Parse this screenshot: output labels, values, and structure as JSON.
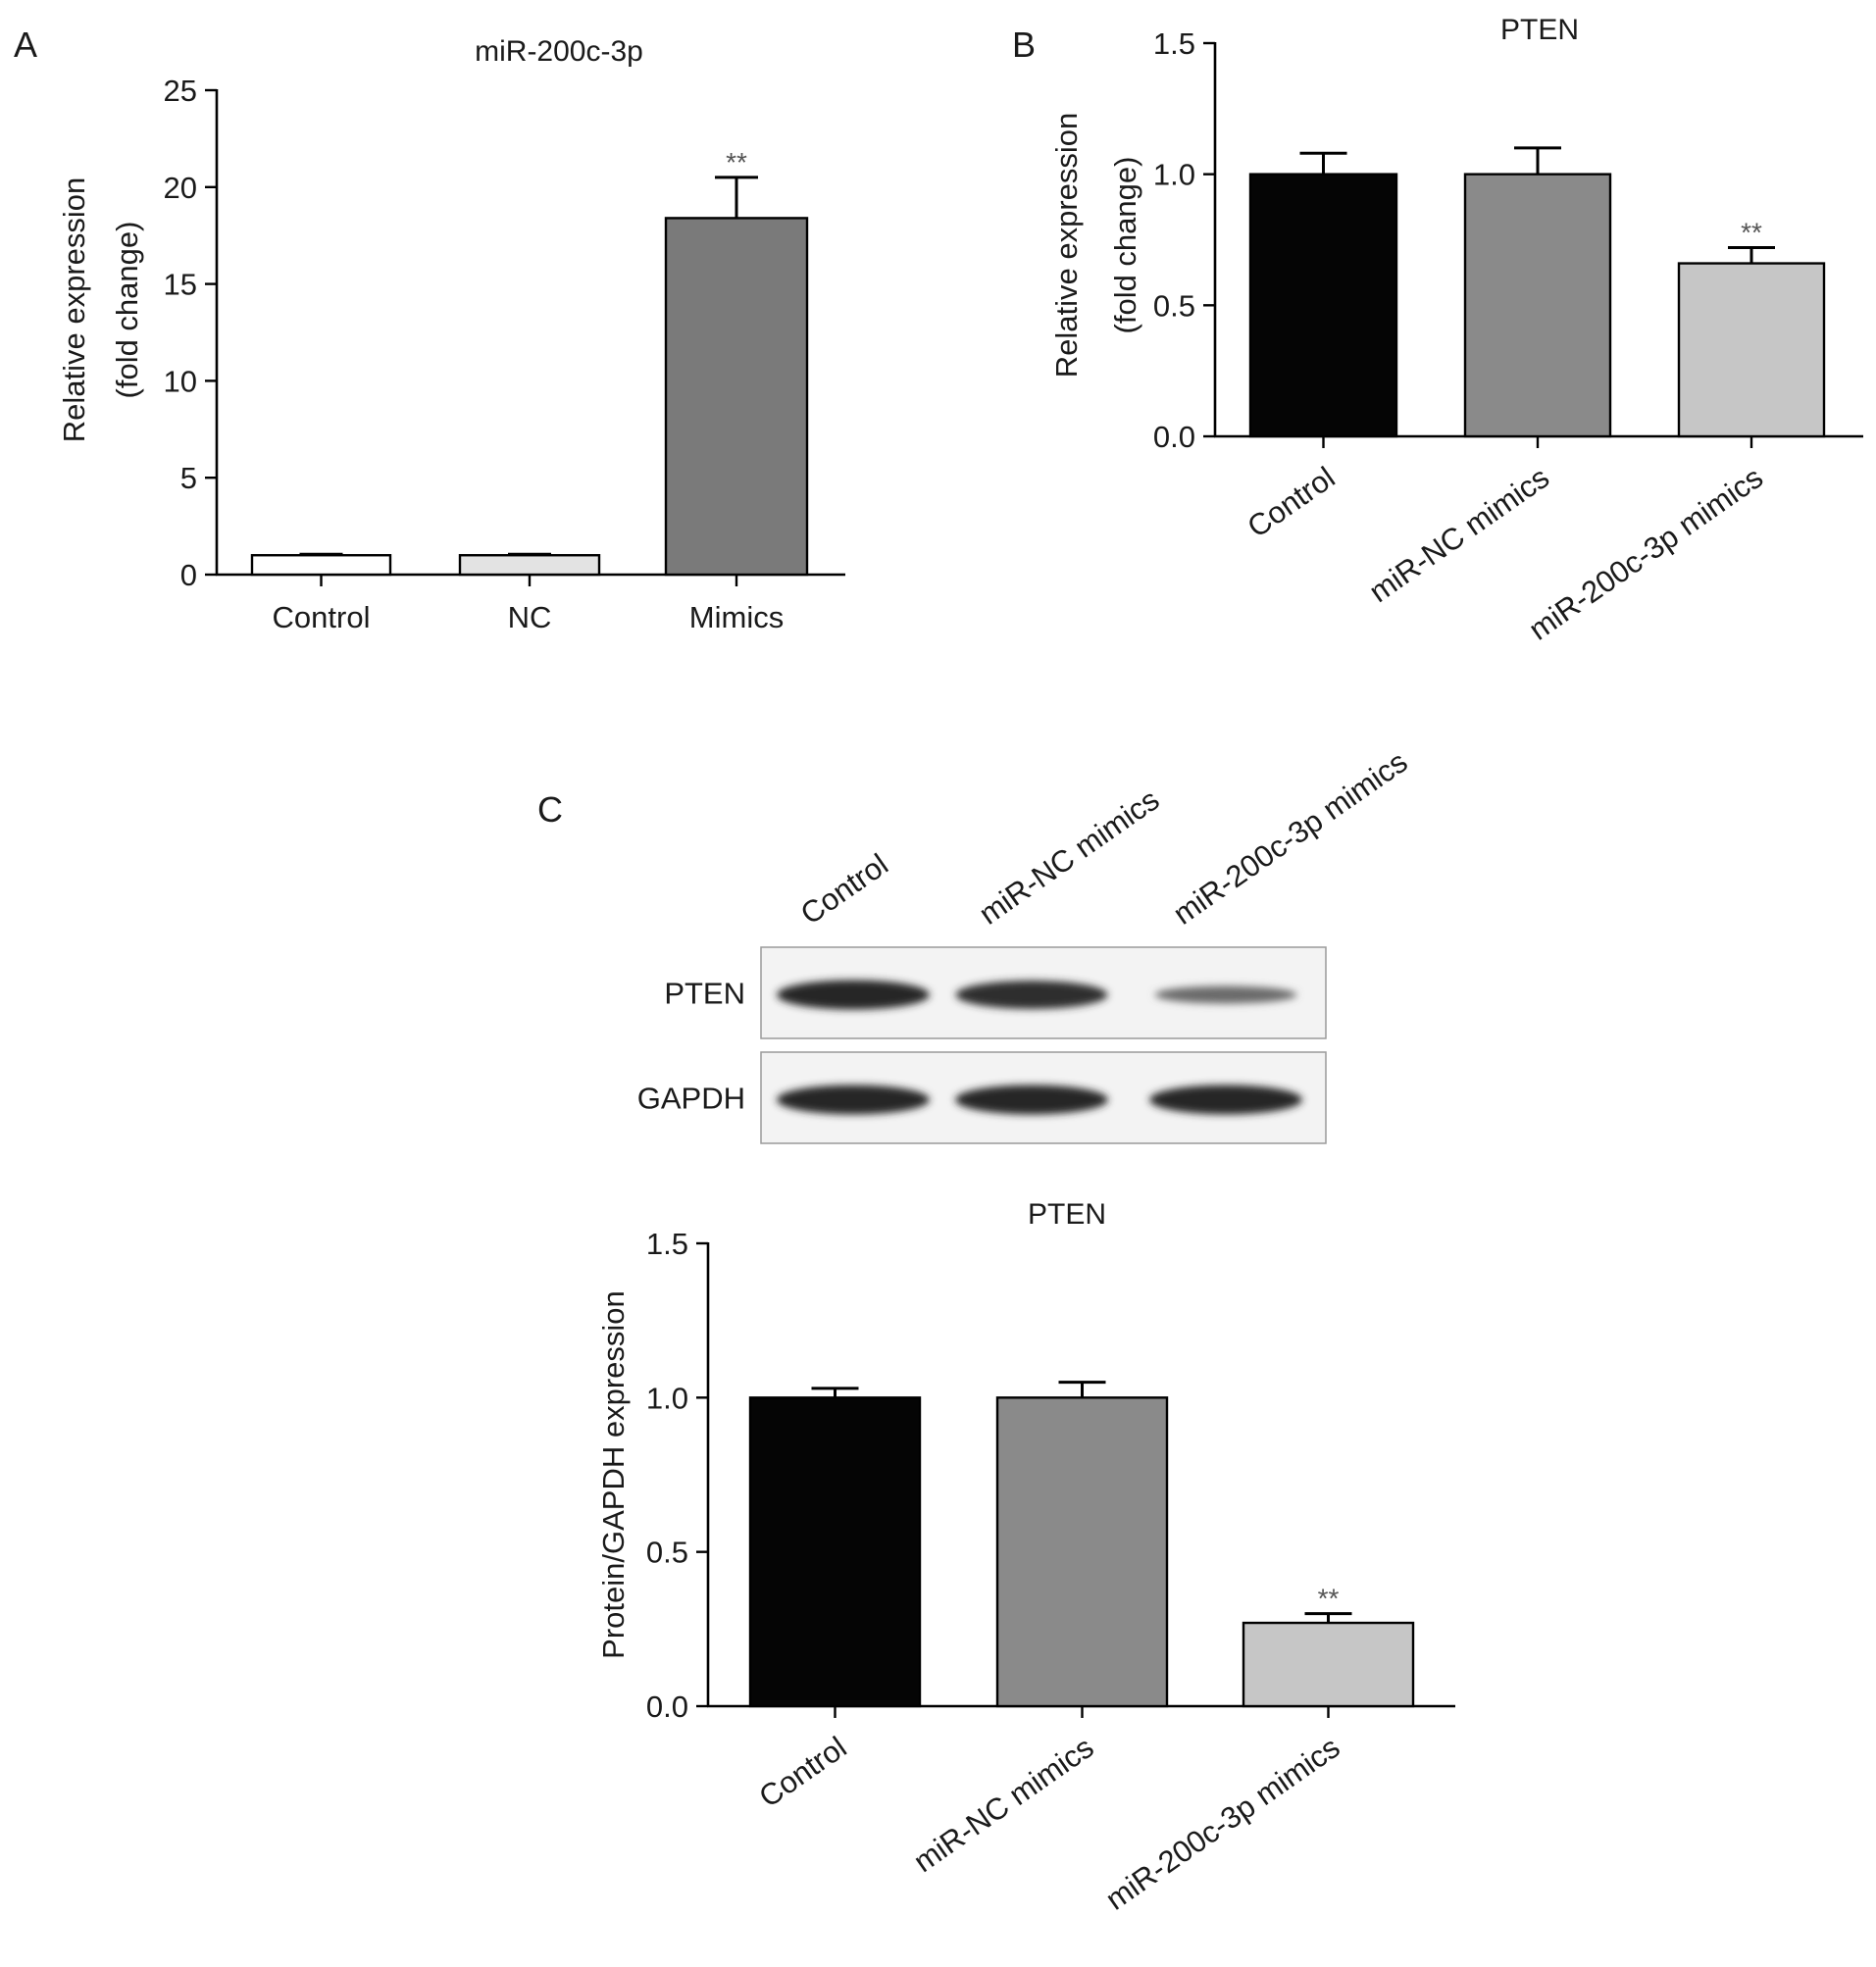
{
  "panels": {
    "a": "A",
    "b": "B",
    "c": "C"
  },
  "chart_data": [
    {
      "id": "A",
      "type": "bar",
      "title": "miR-200c-3p",
      "ylabel_line1": "Relative expression",
      "ylabel_line2": "(fold change)",
      "xlabel": "",
      "categories": [
        "Control",
        "NC",
        "Mimics"
      ],
      "values": [
        1.0,
        1.0,
        18.4
      ],
      "errors": [
        0.05,
        0.05,
        2.1
      ],
      "significance": [
        "",
        "",
        "**"
      ],
      "bar_colors": [
        "#ffffff",
        "#e3e3e3",
        "#7a7a7a"
      ],
      "ylim": [
        0,
        25
      ],
      "yticks": [
        0,
        5,
        10,
        15,
        20,
        25
      ],
      "ytick_labels": [
        "0",
        "5",
        "10",
        "15",
        "20",
        "25"
      ],
      "label_rotation": 0
    },
    {
      "id": "B",
      "type": "bar",
      "title": "PTEN",
      "ylabel_line1": "Relative expression",
      "ylabel_line2": "(fold change)",
      "xlabel": "",
      "categories": [
        "Control",
        "miR-NC mimics",
        "miR-200c-3p mimics"
      ],
      "values": [
        1.0,
        1.0,
        0.66
      ],
      "errors": [
        0.08,
        0.1,
        0.06
      ],
      "significance": [
        "",
        "",
        "**"
      ],
      "bar_colors": [
        "#050505",
        "#8a8a8a",
        "#c6c6c6"
      ],
      "ylim": [
        0,
        1.5
      ],
      "yticks": [
        0,
        0.5,
        1.0,
        1.5
      ],
      "ytick_labels": [
        "0.0",
        "0.5",
        "1.0",
        "1.5"
      ],
      "label_rotation": -35
    },
    {
      "id": "C",
      "type": "bar",
      "title": "PTEN",
      "ylabel_line1": "Protein/GAPDH expression",
      "ylabel_line2": "",
      "xlabel": "",
      "categories": [
        "Control",
        "miR-NC mimics",
        "miR-200c-3p mimics"
      ],
      "values": [
        1.0,
        1.0,
        0.27
      ],
      "errors": [
        0.03,
        0.05,
        0.03
      ],
      "significance": [
        "",
        "",
        "**"
      ],
      "bar_colors": [
        "#050505",
        "#8a8a8a",
        "#c6c6c6"
      ],
      "ylim": [
        0,
        1.5
      ],
      "yticks": [
        0,
        0.5,
        1.0,
        1.5
      ],
      "ytick_labels": [
        "0.0",
        "0.5",
        "1.0",
        "1.5"
      ],
      "label_rotation": -35
    }
  ],
  "western_blot": {
    "lanes": [
      "Control",
      "miR-NC mimics",
      "miR-200c-3p mimics"
    ],
    "rows": [
      {
        "label": "PTEN",
        "band_intensity": [
          1.0,
          0.95,
          0.45
        ]
      },
      {
        "label": "GAPDH",
        "band_intensity": [
          1.0,
          1.0,
          1.0
        ]
      }
    ]
  }
}
